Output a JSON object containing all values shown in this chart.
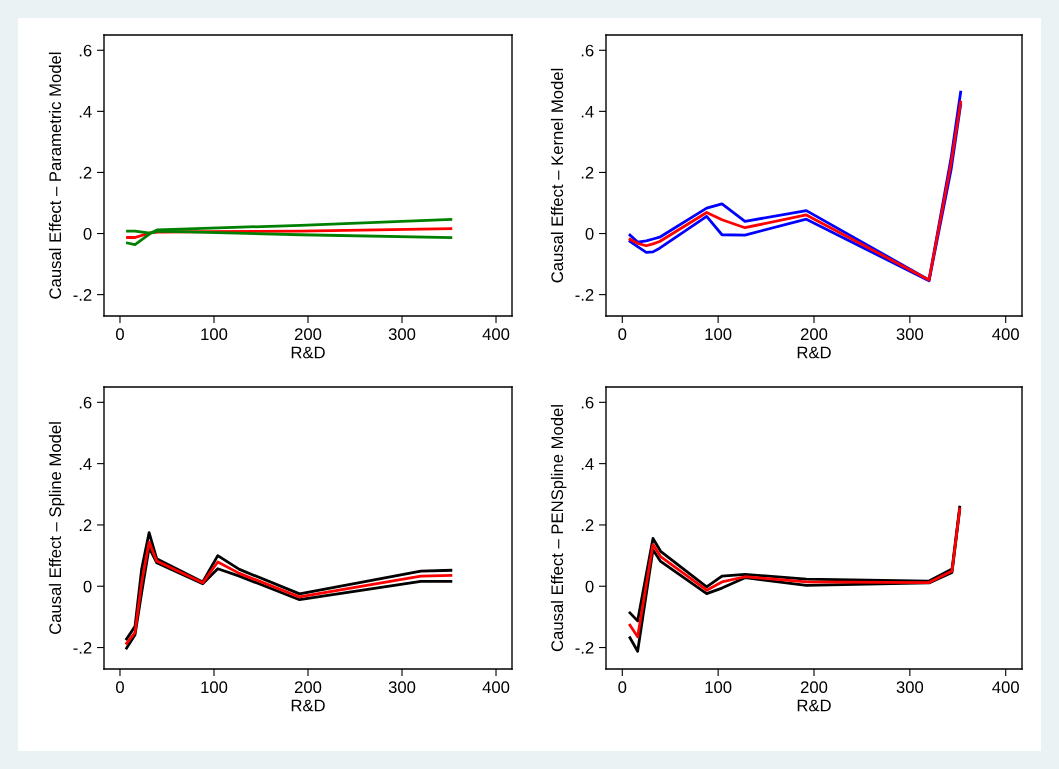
{
  "chart_data": [
    {
      "type": "line",
      "xlabel": "R&D",
      "ylabel": "Causal Effect – Parametric Model",
      "xlim": [
        -17,
        417
      ],
      "ylim": [
        -0.27,
        0.65
      ],
      "xticks": [
        0,
        100,
        200,
        300,
        400
      ],
      "yticks": [
        {
          "value": -0.2,
          "label": "-.2"
        },
        0,
        {
          "value": 0.2,
          "label": ".2"
        },
        {
          "value": 0.4,
          "label": ".4"
        },
        {
          "value": 0.6,
          "label": ".6"
        }
      ],
      "grid": false,
      "x": [
        8,
        16,
        32,
        40,
        192,
        352
      ],
      "series": [
        {
          "color": "#ff0000",
          "values": [
            -0.013,
            -0.013,
            0.002,
            0.005,
            0.008,
            0.016
          ]
        },
        {
          "color": "#008000",
          "values": [
            0.008,
            0.008,
            0.001,
            0.012,
            0.027,
            0.046
          ]
        },
        {
          "color": "#008000",
          "values": [
            -0.031,
            -0.036,
            0.0,
            0.008,
            -0.004,
            -0.013
          ]
        }
      ]
    },
    {
      "type": "line",
      "xlabel": "R&D",
      "ylabel": "Causal Effect – Kernel Model",
      "xlim": [
        -17,
        417
      ],
      "ylim": [
        -0.27,
        0.65
      ],
      "xticks": [
        0,
        100,
        200,
        300,
        400
      ],
      "yticks": [
        {
          "value": -0.2,
          "label": "-.2"
        },
        0,
        {
          "value": 0.2,
          "label": ".2"
        },
        {
          "value": 0.4,
          "label": ".4"
        },
        {
          "value": 0.6,
          "label": ".6"
        }
      ],
      "grid": false,
      "x": [
        8,
        16,
        25,
        32,
        39,
        88,
        104,
        128,
        192,
        320,
        343,
        353
      ],
      "series": [
        {
          "color": "#0000ff",
          "values": [
            -0.005,
            -0.028,
            -0.024,
            -0.018,
            -0.012,
            0.083,
            0.097,
            0.04,
            0.075,
            -0.152,
            0.247,
            0.463
          ]
        },
        {
          "color": "#0000ff",
          "values": [
            -0.026,
            -0.043,
            -0.062,
            -0.06,
            -0.048,
            0.056,
            -0.004,
            -0.005,
            0.047,
            -0.155,
            0.209,
            0.422
          ]
        },
        {
          "color": "#ff0000",
          "values": [
            -0.019,
            -0.032,
            -0.04,
            -0.034,
            -0.026,
            0.069,
            0.045,
            0.019,
            0.061,
            -0.152,
            0.23,
            0.43
          ]
        }
      ]
    },
    {
      "type": "line",
      "xlabel": "R&D",
      "ylabel": "Causal Effect – Spline Model",
      "xlim": [
        -17,
        417
      ],
      "ylim": [
        -0.27,
        0.65
      ],
      "xticks": [
        0,
        100,
        200,
        300,
        400
      ],
      "yticks": [
        {
          "value": -0.2,
          "label": "-.2"
        },
        0,
        {
          "value": 0.2,
          "label": ".2"
        },
        {
          "value": 0.4,
          "label": ".4"
        },
        {
          "value": 0.6,
          "label": ".6"
        }
      ],
      "grid": false,
      "x": [
        7,
        16,
        23,
        31,
        39,
        88,
        104,
        127,
        191,
        320,
        352
      ],
      "series": [
        {
          "color": "#000000",
          "values": [
            -0.172,
            -0.131,
            0.055,
            0.175,
            0.09,
            0.014,
            0.1,
            0.055,
            -0.025,
            0.049,
            0.052
          ]
        },
        {
          "color": "#000000",
          "values": [
            -0.202,
            -0.158,
            -0.022,
            0.126,
            0.077,
            0.008,
            0.057,
            0.033,
            -0.044,
            0.016,
            0.016
          ]
        },
        {
          "color": "#ff0000",
          "values": [
            -0.186,
            -0.151,
            0.01,
            0.144,
            0.082,
            0.011,
            0.079,
            0.042,
            -0.035,
            0.033,
            0.035
          ]
        }
      ]
    },
    {
      "type": "line",
      "xlabel": "R&D",
      "ylabel": "Causal Effect – PENSpline Model",
      "xlim": [
        -17,
        417
      ],
      "ylim": [
        -0.27,
        0.65
      ],
      "xticks": [
        0,
        100,
        200,
        300,
        400
      ],
      "yticks": [
        {
          "value": -0.2,
          "label": "-.2"
        },
        0,
        {
          "value": 0.2,
          "label": ".2"
        },
        {
          "value": 0.4,
          "label": ".4"
        },
        {
          "value": 0.6,
          "label": ".6"
        }
      ],
      "grid": false,
      "x": [
        8,
        16,
        32,
        40,
        88,
        104,
        128,
        192,
        320,
        344,
        352
      ],
      "series": [
        {
          "color": "#000000",
          "values": [
            -0.087,
            -0.113,
            0.156,
            0.114,
            -0.002,
            0.033,
            0.039,
            0.023,
            0.017,
            0.056,
            0.258
          ]
        },
        {
          "color": "#000000",
          "values": [
            -0.168,
            -0.212,
            0.119,
            0.081,
            -0.024,
            -0.006,
            0.028,
            0.003,
            0.011,
            0.045,
            0.25
          ]
        },
        {
          "color": "#ff0000",
          "values": [
            -0.127,
            -0.165,
            0.136,
            0.097,
            -0.013,
            0.014,
            0.031,
            0.014,
            0.012,
            0.05,
            0.252
          ]
        }
      ]
    }
  ]
}
